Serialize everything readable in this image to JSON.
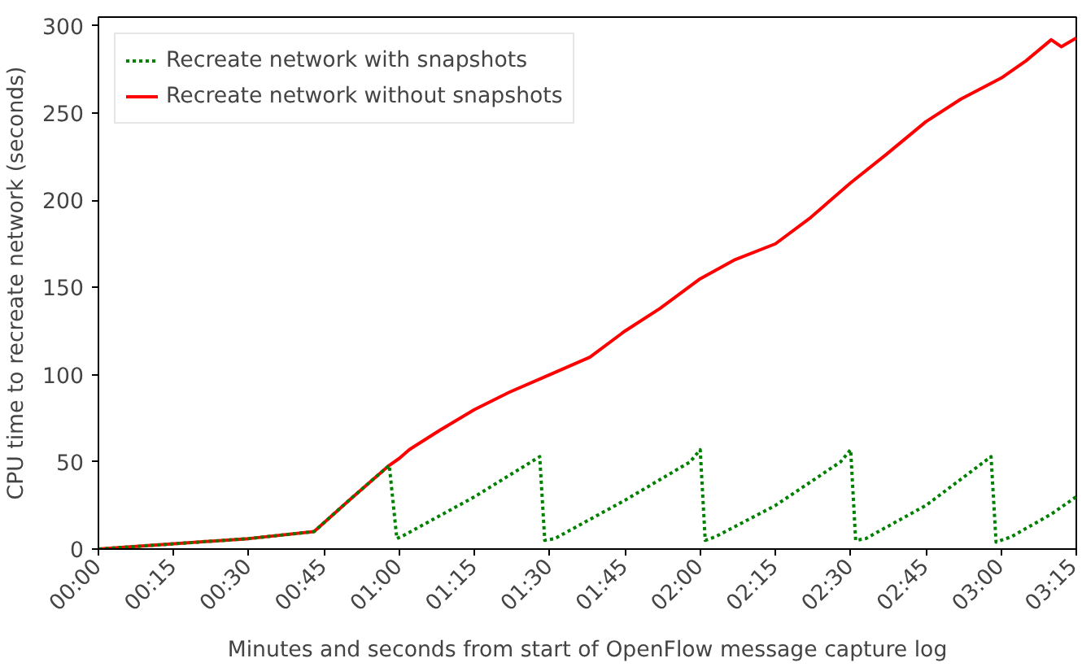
{
  "chart_data": {
    "type": "line",
    "xlabel": "Minutes and seconds from start of OpenFlow message capture log",
    "ylabel": "CPU time to recreate network (seconds)",
    "xlim": [
      0,
      195
    ],
    "ylim": [
      0,
      305
    ],
    "xticks": [
      {
        "value": 0,
        "label": "00:00"
      },
      {
        "value": 15,
        "label": "00:15"
      },
      {
        "value": 30,
        "label": "00:30"
      },
      {
        "value": 45,
        "label": "00:45"
      },
      {
        "value": 60,
        "label": "01:00"
      },
      {
        "value": 75,
        "label": "01:15"
      },
      {
        "value": 90,
        "label": "01:30"
      },
      {
        "value": 105,
        "label": "01:45"
      },
      {
        "value": 120,
        "label": "02:00"
      },
      {
        "value": 135,
        "label": "02:15"
      },
      {
        "value": 150,
        "label": "02:30"
      },
      {
        "value": 165,
        "label": "02:45"
      },
      {
        "value": 180,
        "label": "03:00"
      },
      {
        "value": 195,
        "label": "03:15"
      }
    ],
    "yticks": [
      0,
      50,
      100,
      150,
      200,
      250,
      300
    ],
    "legend": "top left",
    "grid": false,
    "series": [
      {
        "name": "Recreate network with snapshots",
        "color": "#008000",
        "line_style": "dotted",
        "x": [
          0,
          15,
          30,
          43,
          50,
          58,
          59.5,
          61,
          75,
          88,
          89,
          91,
          105,
          118,
          120,
          121,
          123,
          135,
          148,
          150,
          151,
          153,
          165,
          178,
          179,
          182,
          190,
          195
        ],
        "values": [
          0,
          3,
          6,
          10,
          28,
          48,
          6,
          8,
          30,
          53,
          5,
          6,
          28,
          50,
          57,
          5,
          7,
          25,
          50,
          57,
          5,
          6,
          25,
          53,
          4,
          7,
          20,
          30
        ]
      },
      {
        "name": "Recreate network without snapshots",
        "color": "#ff0000",
        "line_style": "solid",
        "x": [
          0,
          15,
          30,
          43,
          50,
          58,
          60,
          62,
          68,
          75,
          82,
          90,
          98,
          105,
          112,
          120,
          127,
          135,
          142,
          150,
          157,
          165,
          172,
          180,
          185,
          190,
          192,
          195
        ],
        "values": [
          0,
          3,
          6,
          10,
          28,
          48,
          52,
          57,
          68,
          80,
          90,
          100,
          110,
          125,
          138,
          155,
          166,
          175,
          190,
          210,
          226,
          245,
          258,
          270,
          280,
          292,
          288,
          293
        ]
      }
    ]
  }
}
